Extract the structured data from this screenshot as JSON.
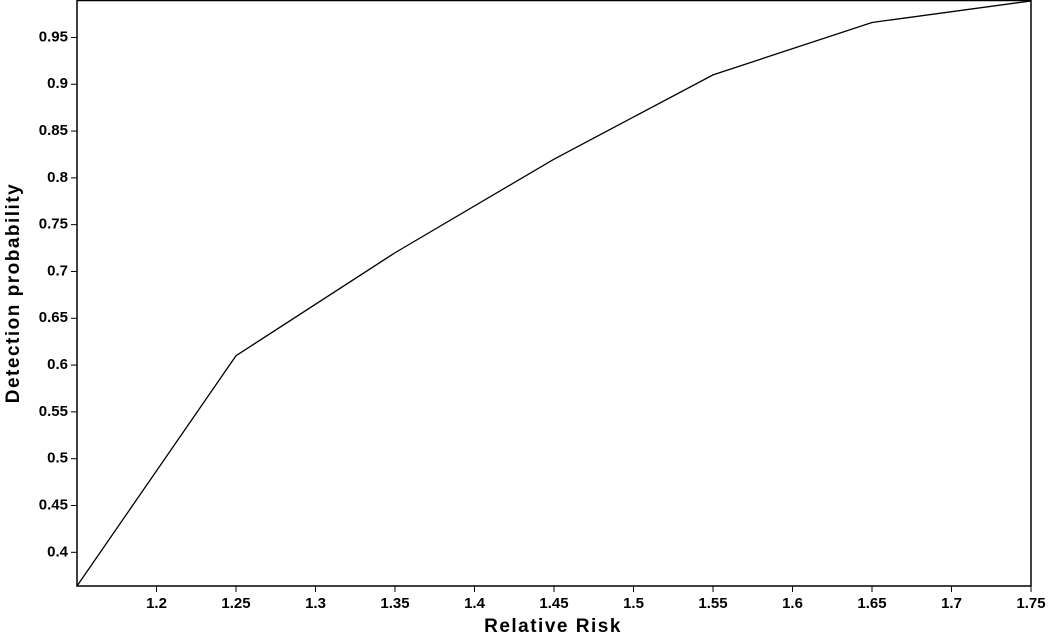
{
  "chart_data": {
    "type": "line",
    "x_label": "Relative Risk",
    "y_label": "Detection probability",
    "x": [
      1.15,
      1.25,
      1.35,
      1.45,
      1.55,
      1.65,
      1.75
    ],
    "values": [
      0.364,
      0.61,
      0.72,
      0.82,
      0.91,
      0.966,
      0.989
    ],
    "color": "#000000",
    "xlim": [
      1.15,
      1.75
    ],
    "ylim": [
      0.364,
      0.99
    ],
    "xticks": [
      1.2,
      1.25,
      1.3,
      1.35,
      1.4,
      1.45,
      1.5,
      1.55,
      1.6,
      1.65,
      1.7,
      1.75
    ],
    "yticks": [
      0.4,
      0.45,
      0.5,
      0.55,
      0.6,
      0.65,
      0.7,
      0.75,
      0.8,
      0.85,
      0.9,
      0.95
    ],
    "grid": false
  }
}
